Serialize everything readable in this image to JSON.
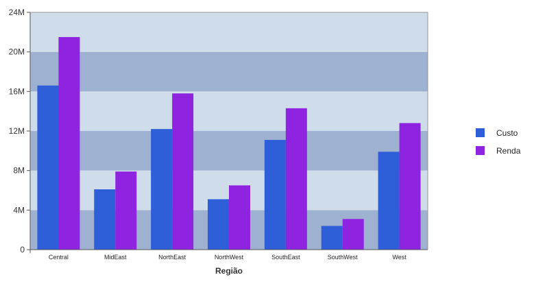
{
  "chart_data": {
    "type": "bar",
    "title": "",
    "xlabel": "Região",
    "ylabel": "",
    "categories": [
      "Central",
      "MidEast",
      "NorthEast",
      "NorthWest",
      "SouthEast",
      "SouthWest",
      "West"
    ],
    "series": [
      {
        "name": "Custo",
        "color": "#2f5fd8",
        "values": [
          16.6,
          6.1,
          12.2,
          5.1,
          11.1,
          2.4,
          9.9
        ]
      },
      {
        "name": "Renda",
        "color": "#8e24e0",
        "values": [
          21.5,
          7.9,
          15.8,
          6.5,
          14.3,
          3.1,
          12.8
        ]
      }
    ],
    "ylim": [
      0,
      24
    ],
    "yticks": [
      {
        "value": 0,
        "label": "0"
      },
      {
        "value": 4,
        "label": "4M"
      },
      {
        "value": 8,
        "label": "8M"
      },
      {
        "value": 12,
        "label": "12M"
      },
      {
        "value": 16,
        "label": "16M"
      },
      {
        "value": 20,
        "label": "20M"
      },
      {
        "value": 24,
        "label": "24M"
      }
    ],
    "grid": true,
    "band_colors": [
      "#9eb1d1",
      "#cfdcea"
    ],
    "legend": "right"
  }
}
